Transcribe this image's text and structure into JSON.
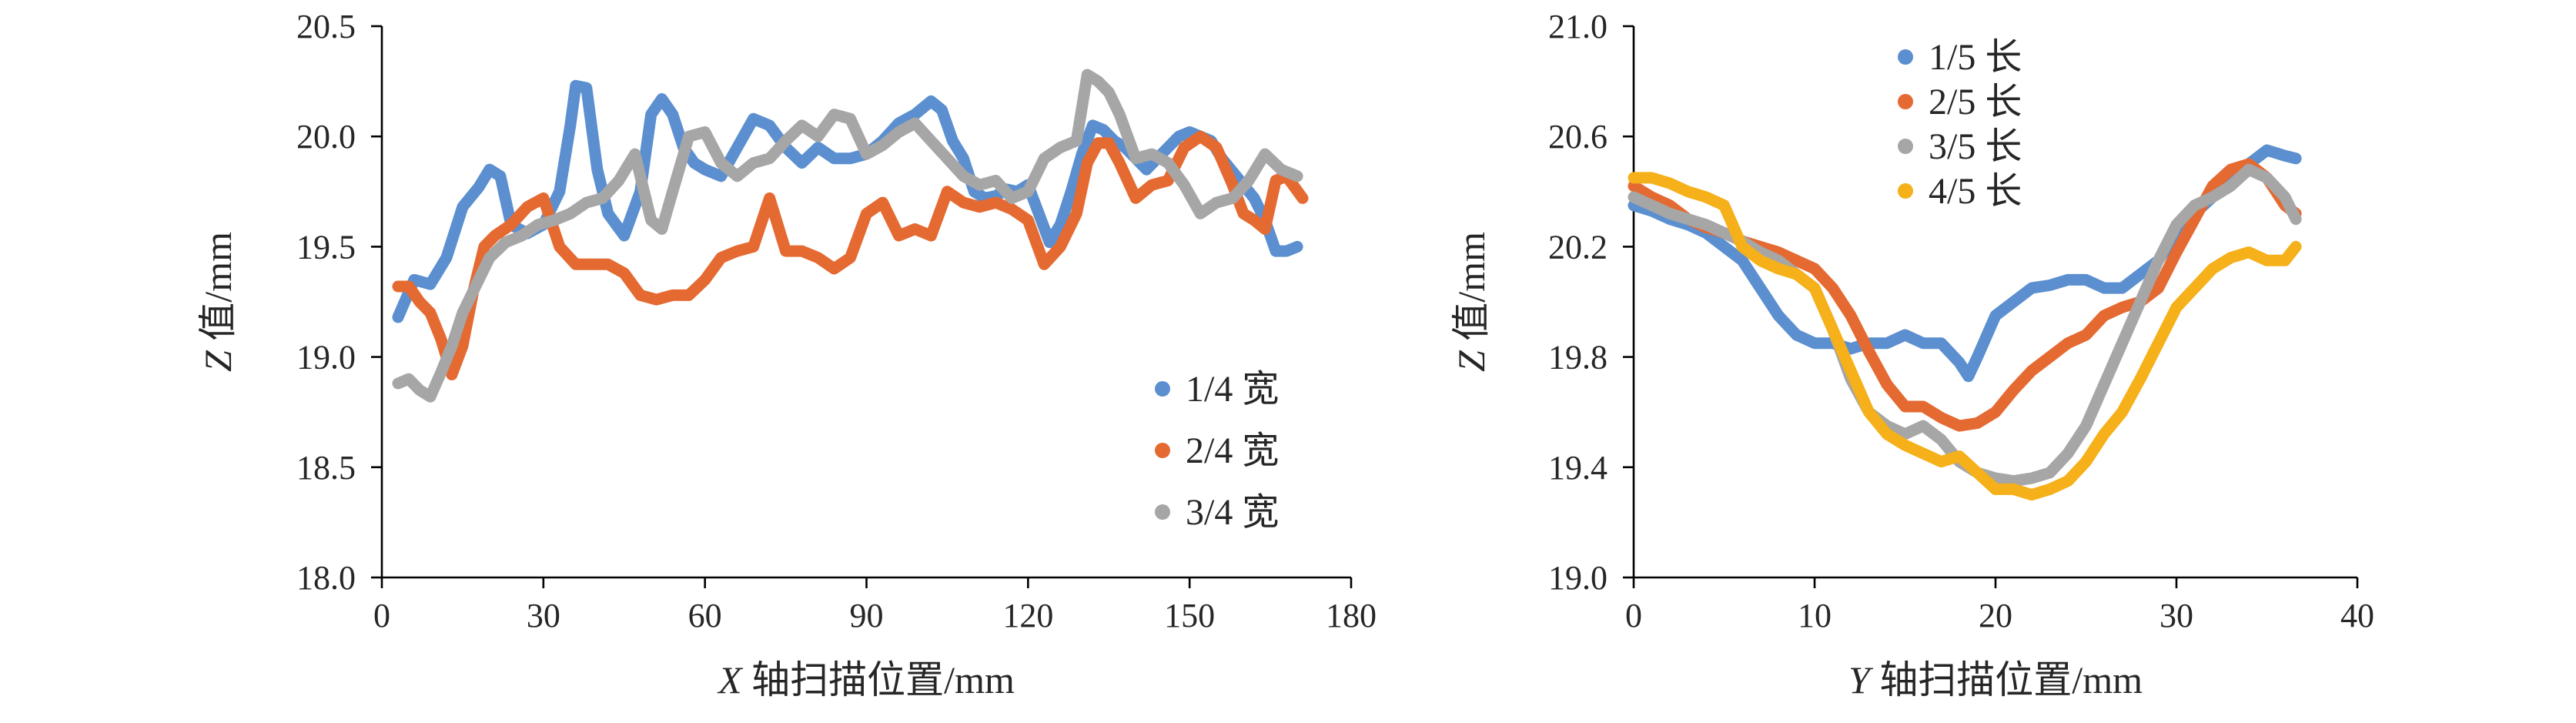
{
  "chart_data": [
    {
      "type": "line",
      "ylabel_var": "Z",
      "ylabel_rest": "值/mm",
      "xlabel_var": "X",
      "xlabel_rest": " 轴扫描位置/mm",
      "xlim": [
        0,
        180
      ],
      "ylim": [
        18.0,
        20.5
      ],
      "xticks": [
        "0",
        "30",
        "60",
        "90",
        "120",
        "150",
        "180"
      ],
      "yticks": [
        "18.0",
        "18.5",
        "19.0",
        "19.5",
        "20.0",
        "20.5"
      ],
      "xtick_values": [
        0,
        30,
        60,
        90,
        120,
        150,
        180
      ],
      "ytick_values": [
        18.0,
        18.5,
        19.0,
        19.5,
        20.0,
        20.5
      ],
      "legend_position": "right-middle",
      "series": [
        {
          "name": "1/4 宽",
          "color": "#5b8fcf",
          "x": [
            3,
            6,
            9,
            12,
            15,
            18,
            20,
            22,
            24,
            27,
            30,
            33,
            35,
            36,
            38,
            40,
            42,
            45,
            48,
            50,
            52,
            54,
            56,
            58,
            60,
            63,
            66,
            69,
            72,
            75,
            78,
            81,
            84,
            87,
            90,
            93,
            96,
            99,
            102,
            104,
            106,
            108,
            110,
            112,
            114,
            116,
            118,
            120,
            122,
            124,
            126,
            128,
            130,
            132,
            134,
            136,
            138,
            140,
            142,
            144,
            146,
            148,
            150,
            152,
            154,
            156,
            158,
            160,
            162,
            164,
            166,
            168,
            170
          ],
          "y": [
            19.18,
            19.35,
            19.33,
            19.45,
            19.68,
            19.77,
            19.85,
            19.82,
            19.6,
            19.56,
            19.6,
            19.75,
            20.05,
            20.23,
            20.22,
            19.85,
            19.65,
            19.55,
            19.75,
            20.1,
            20.17,
            20.1,
            19.95,
            19.88,
            19.85,
            19.82,
            19.95,
            20.08,
            20.05,
            19.95,
            19.88,
            19.95,
            19.9,
            19.9,
            19.92,
            19.98,
            20.06,
            20.1,
            20.16,
            20.12,
            19.98,
            19.9,
            19.75,
            19.72,
            19.73,
            19.76,
            19.75,
            19.78,
            19.65,
            19.52,
            19.6,
            19.75,
            19.92,
            20.05,
            20.03,
            19.98,
            19.95,
            19.9,
            19.85,
            19.9,
            19.95,
            20.0,
            20.02,
            20.0,
            19.98,
            19.9,
            19.84,
            19.78,
            19.72,
            19.62,
            19.48,
            19.48,
            19.5
          ]
        },
        {
          "name": "2/4 宽",
          "color": "#e46a32",
          "x": [
            3,
            5,
            7,
            9,
            11,
            13,
            15,
            17,
            19,
            21,
            24,
            27,
            30,
            33,
            36,
            39,
            42,
            45,
            48,
            51,
            54,
            57,
            60,
            63,
            66,
            69,
            72,
            75,
            78,
            81,
            84,
            87,
            90,
            93,
            96,
            99,
            102,
            105,
            108,
            111,
            114,
            117,
            120,
            123,
            126,
            129,
            131,
            133,
            135,
            137,
            140,
            143,
            146,
            149,
            152,
            155,
            158,
            160,
            162,
            164,
            166,
            168,
            171
          ],
          "y": [
            19.32,
            19.32,
            19.25,
            19.2,
            19.08,
            18.92,
            19.05,
            19.3,
            19.5,
            19.55,
            19.6,
            19.68,
            19.72,
            19.5,
            19.42,
            19.42,
            19.42,
            19.38,
            19.28,
            19.26,
            19.28,
            19.28,
            19.35,
            19.45,
            19.48,
            19.5,
            19.72,
            19.48,
            19.48,
            19.45,
            19.4,
            19.45,
            19.65,
            19.7,
            19.55,
            19.58,
            19.55,
            19.75,
            19.7,
            19.68,
            19.7,
            19.67,
            19.62,
            19.42,
            19.5,
            19.65,
            19.88,
            19.97,
            19.97,
            19.88,
            19.72,
            19.78,
            19.8,
            19.95,
            20.0,
            19.95,
            19.78,
            19.65,
            19.62,
            19.58,
            19.8,
            19.82,
            19.72
          ]
        },
        {
          "name": "3/4 宽",
          "color": "#a6a6a6",
          "x": [
            3,
            5,
            7,
            9,
            11,
            13,
            15,
            17,
            20,
            23,
            26,
            29,
            32,
            35,
            38,
            41,
            44,
            47,
            50,
            52,
            54,
            57,
            60,
            63,
            66,
            69,
            72,
            75,
            78,
            81,
            84,
            87,
            90,
            93,
            96,
            99,
            102,
            105,
            108,
            111,
            114,
            117,
            120,
            123,
            126,
            129,
            131,
            133,
            135,
            137,
            140,
            143,
            146,
            149,
            152,
            155,
            158,
            161,
            164,
            167,
            170
          ],
          "y": [
            18.88,
            18.9,
            18.85,
            18.82,
            18.93,
            19.05,
            19.2,
            19.3,
            19.45,
            19.52,
            19.55,
            19.6,
            19.62,
            19.65,
            19.7,
            19.72,
            19.8,
            19.92,
            19.62,
            19.58,
            19.75,
            20.0,
            20.02,
            19.88,
            19.82,
            19.88,
            19.9,
            19.98,
            20.05,
            20.0,
            20.1,
            20.08,
            19.92,
            19.96,
            20.02,
            20.06,
            19.98,
            19.9,
            19.82,
            19.78,
            19.8,
            19.72,
            19.75,
            19.9,
            19.95,
            19.98,
            20.28,
            20.25,
            20.2,
            20.1,
            19.9,
            19.92,
            19.88,
            19.78,
            19.65,
            19.7,
            19.72,
            19.8,
            19.92,
            19.85,
            19.82
          ]
        }
      ]
    },
    {
      "type": "line",
      "ylabel_var": "Z",
      "ylabel_rest": "值/mm",
      "xlabel_var": "Y",
      "xlabel_rest": " 轴扫描位置/mm",
      "xlim": [
        0,
        40
      ],
      "ylim": [
        19.0,
        21.0
      ],
      "xticks": [
        "0",
        "10",
        "20",
        "30",
        "40"
      ],
      "yticks": [
        "19.0",
        "19.4",
        "19.8",
        "20.2",
        "20.6",
        "21.0"
      ],
      "xtick_values": [
        0,
        10,
        20,
        30,
        40
      ],
      "ytick_values": [
        19.0,
        19.4,
        19.8,
        20.2,
        20.6,
        21.0
      ],
      "legend_position": "top-middle",
      "series": [
        {
          "name": "1/5 长",
          "color": "#5b8fcf",
          "x": [
            0,
            1,
            2,
            3,
            4,
            5,
            6,
            7,
            8,
            9,
            10,
            11,
            12,
            13,
            14,
            15,
            16,
            17,
            18,
            18.5,
            19,
            20,
            21,
            22,
            23,
            24,
            25,
            26,
            27,
            28,
            29,
            30,
            31,
            32,
            33,
            34,
            35,
            36,
            36.6
          ],
          "y": [
            20.35,
            20.33,
            20.3,
            20.28,
            20.25,
            20.2,
            20.15,
            20.05,
            19.95,
            19.88,
            19.85,
            19.85,
            19.83,
            19.85,
            19.85,
            19.88,
            19.85,
            19.85,
            19.78,
            19.73,
            19.8,
            19.95,
            20.0,
            20.05,
            20.06,
            20.08,
            20.08,
            20.05,
            20.05,
            20.1,
            20.15,
            20.25,
            20.32,
            20.38,
            20.45,
            20.5,
            20.55,
            20.53,
            20.52
          ]
        },
        {
          "name": "2/5 长",
          "color": "#e46a32",
          "x": [
            0,
            1,
            2,
            3,
            4,
            5,
            6,
            7,
            8,
            9,
            10,
            11,
            12,
            13,
            14,
            15,
            16,
            17,
            18,
            19,
            20,
            21,
            22,
            23,
            24,
            25,
            26,
            27,
            28,
            29,
            30,
            31,
            32,
            33,
            34,
            35,
            36,
            36.6
          ],
          "y": [
            20.42,
            20.38,
            20.35,
            20.3,
            20.27,
            20.25,
            20.22,
            20.2,
            20.18,
            20.15,
            20.12,
            20.05,
            19.95,
            19.82,
            19.7,
            19.62,
            19.62,
            19.58,
            19.55,
            19.56,
            19.6,
            19.68,
            19.75,
            19.8,
            19.85,
            19.88,
            19.95,
            19.98,
            20.0,
            20.05,
            20.18,
            20.3,
            20.42,
            20.48,
            20.5,
            20.45,
            20.35,
            20.32
          ]
        },
        {
          "name": "3/5 长",
          "color": "#a6a6a6",
          "x": [
            0,
            1,
            2,
            3,
            4,
            5,
            6,
            7,
            8,
            9,
            10,
            11,
            12,
            13,
            14,
            15,
            16,
            17,
            18,
            19,
            20,
            21,
            22,
            23,
            24,
            25,
            26,
            27,
            28,
            29,
            30,
            31,
            32,
            33,
            34,
            35,
            36,
            36.6
          ],
          "y": [
            20.38,
            20.35,
            20.32,
            20.3,
            20.28,
            20.25,
            20.22,
            20.18,
            20.15,
            20.1,
            20.05,
            19.9,
            19.72,
            19.6,
            19.55,
            19.52,
            19.55,
            19.5,
            19.42,
            19.38,
            19.36,
            19.35,
            19.36,
            19.38,
            19.45,
            19.55,
            19.7,
            19.85,
            20.0,
            20.15,
            20.28,
            20.35,
            20.38,
            20.42,
            20.48,
            20.45,
            20.38,
            20.3
          ]
        },
        {
          "name": "4/5 长",
          "color": "#f5b01a",
          "x": [
            0,
            1,
            2,
            3,
            4,
            5,
            6,
            7,
            8,
            9,
            10,
            11,
            12,
            13,
            14,
            15,
            16,
            17,
            18,
            19,
            20,
            21,
            22,
            23,
            24,
            25,
            26,
            27,
            28,
            29,
            30,
            31,
            32,
            33,
            34,
            35,
            36,
            36.6
          ],
          "y": [
            20.45,
            20.45,
            20.43,
            20.4,
            20.38,
            20.35,
            20.2,
            20.15,
            20.12,
            20.1,
            20.05,
            19.9,
            19.75,
            19.6,
            19.52,
            19.48,
            19.45,
            19.42,
            19.44,
            19.38,
            19.32,
            19.32,
            19.3,
            19.32,
            19.35,
            19.42,
            19.52,
            19.6,
            19.72,
            19.85,
            19.98,
            20.05,
            20.12,
            20.16,
            20.18,
            20.15,
            20.15,
            20.2
          ]
        }
      ]
    }
  ]
}
